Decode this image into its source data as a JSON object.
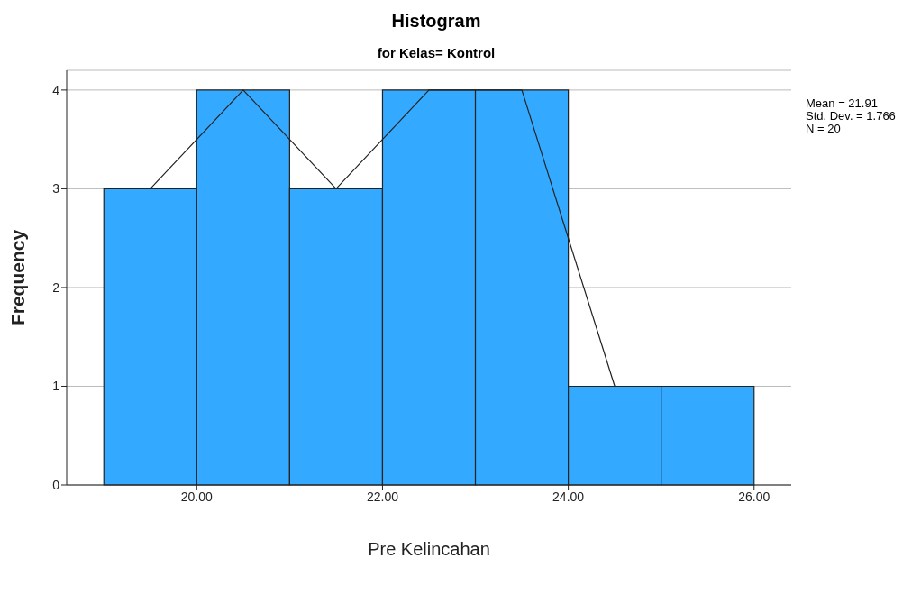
{
  "chart_data": {
    "type": "histogram",
    "title": "Histogram",
    "subtitle": "for Kelas= Kontrol",
    "xlabel": "Pre Kelincahan",
    "ylabel": "Frequency",
    "bins": [
      19,
      20,
      21,
      22,
      23,
      24,
      25,
      26
    ],
    "values": [
      3,
      4,
      3,
      4,
      4,
      1,
      1
    ],
    "color": "#33aaff",
    "series": [
      {
        "type": "line",
        "color": "#222222",
        "x": [
          19.5,
          20.5,
          21.5,
          22.5,
          23.5,
          24.5
        ],
        "values": [
          3,
          4,
          3,
          4,
          4,
          1
        ]
      }
    ],
    "xlim": [
      18.6,
      26.4
    ],
    "xticks": [
      {
        "value": 20,
        "label": "20.00"
      },
      {
        "value": 22,
        "label": "22.00"
      },
      {
        "value": 24,
        "label": "24.00"
      },
      {
        "value": 26,
        "label": "26.00"
      }
    ],
    "ylim": [
      0,
      4.2
    ],
    "yticks": [
      0,
      1,
      2,
      3,
      4
    ],
    "grid": "y",
    "annotations": [
      "Mean = 21.91",
      "Std. Dev. = 1.766",
      "N = 20"
    ]
  }
}
